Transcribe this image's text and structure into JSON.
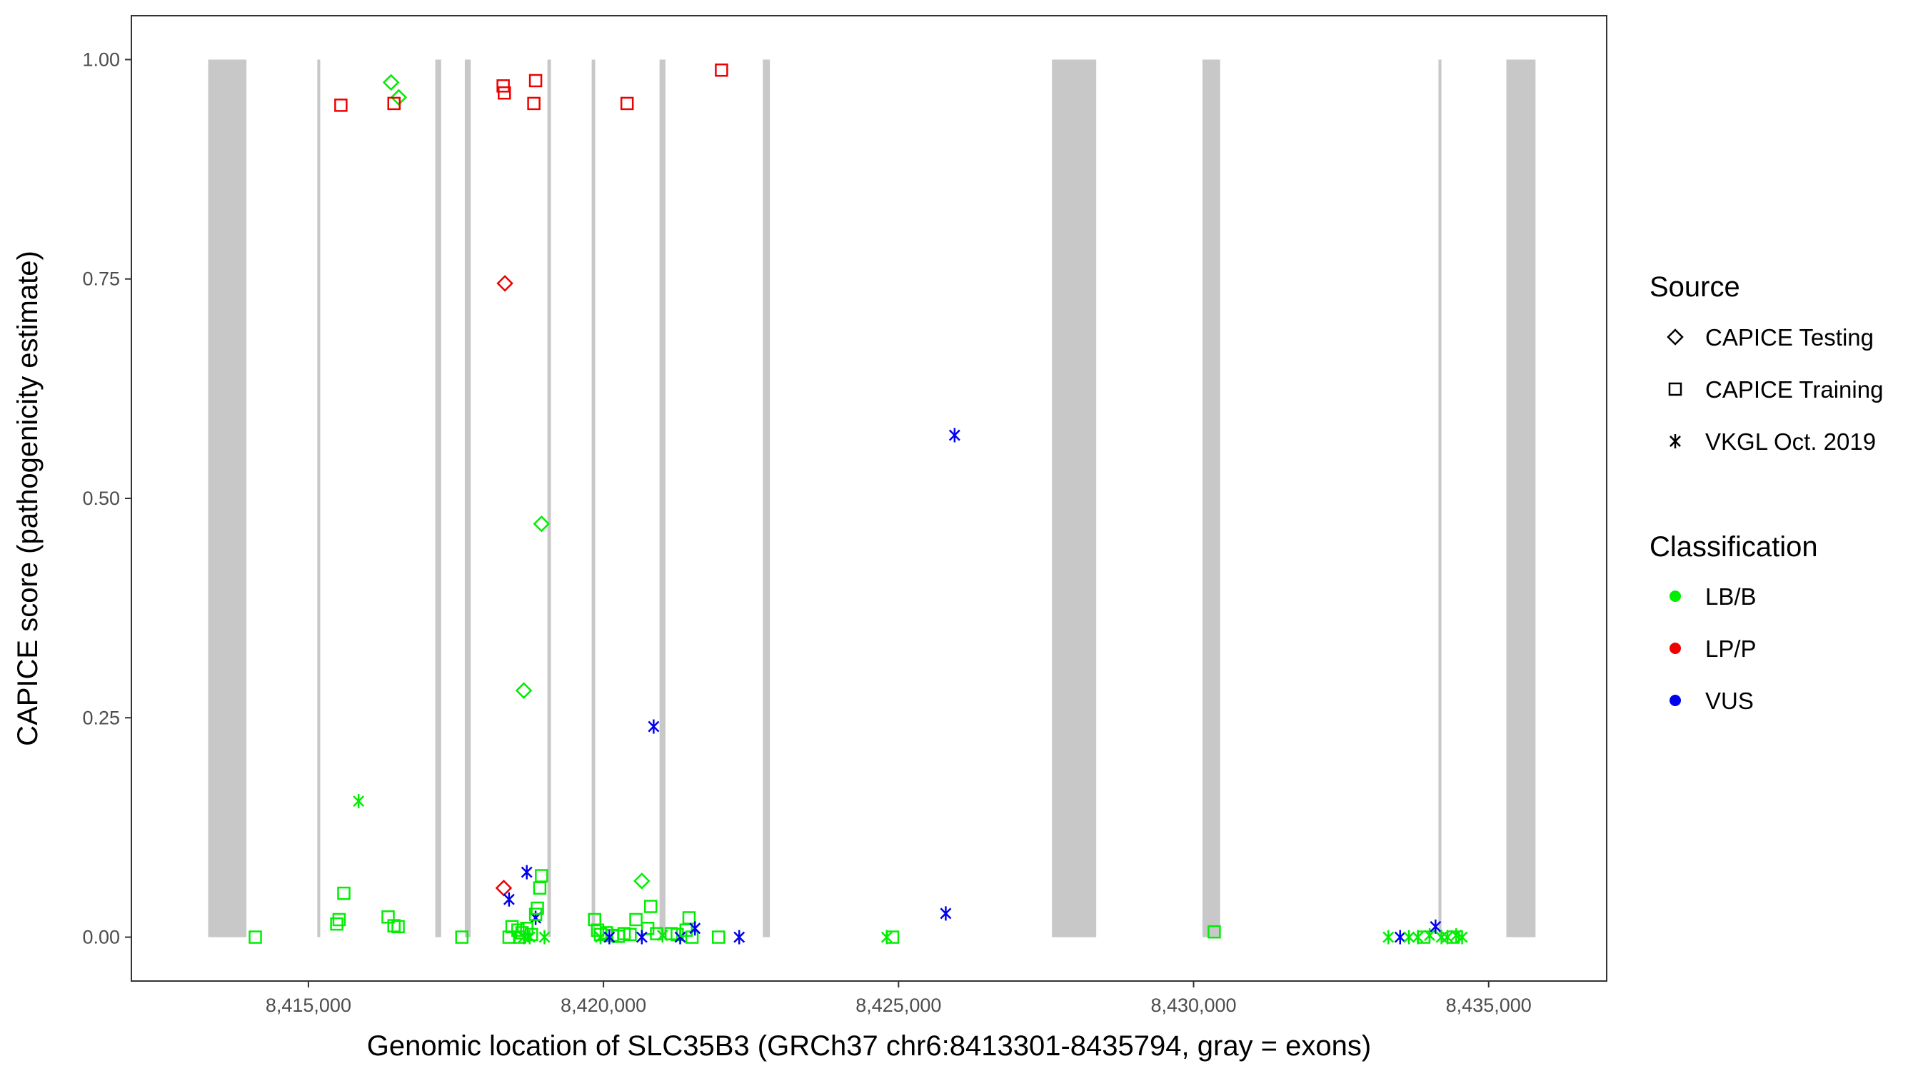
{
  "chart_data": {
    "type": "scatter",
    "xlabel": "Genomic location of SLC35B3 (GRCh37 chr6:8413301-8435794, gray = exons)",
    "ylabel": "CAPICE score (pathogenicity estimate)",
    "xlim": [
      8412000,
      8437000
    ],
    "ylim": [
      -0.05,
      1.05
    ],
    "x_ticks": [
      8415000,
      8420000,
      8425000,
      8430000,
      8435000
    ],
    "x_tick_labels": [
      "8,415,000",
      "8,420,000",
      "8,425,000",
      "8,430,000",
      "8,435,000"
    ],
    "y_ticks": [
      0,
      0.25,
      0.5,
      0.75,
      1.0
    ],
    "y_tick_labels": [
      "0.00",
      "0.25",
      "0.50",
      "0.75",
      "1.00"
    ],
    "grid": false,
    "exon_color": "#c8c8c8",
    "exons": [
      [
        8413301,
        8413950
      ],
      [
        8415150,
        8415200
      ],
      [
        8417150,
        8417250
      ],
      [
        8417650,
        8417750
      ],
      [
        8419050,
        8419110
      ],
      [
        8419800,
        8419860
      ],
      [
        8420950,
        8421050
      ],
      [
        8422700,
        8422820
      ],
      [
        8427600,
        8428350
      ],
      [
        8430150,
        8430450
      ],
      [
        8434150,
        8434200
      ],
      [
        8435300,
        8435794
      ]
    ],
    "legend": {
      "source_title": "Source",
      "source_items": [
        {
          "label": "CAPICE Testing",
          "shape": "diamond"
        },
        {
          "label": "CAPICE Training",
          "shape": "square"
        },
        {
          "label": "VKGL Oct. 2019",
          "shape": "asterisk"
        }
      ],
      "class_title": "Classification",
      "class_items": [
        {
          "label": "LB/B",
          "color": "#00ee00"
        },
        {
          "label": "LP/P",
          "color": "#ee0000"
        },
        {
          "label": "VUS",
          "color": "#0000ee"
        }
      ],
      "placement": "right"
    },
    "points": [
      {
        "x": 8414100,
        "y": 0.0,
        "source": "CAPICE Training",
        "cls": "LB/B"
      },
      {
        "x": 8415550,
        "y": 0.948,
        "source": "CAPICE Training",
        "cls": "LP/P"
      },
      {
        "x": 8415600,
        "y": 0.05,
        "source": "CAPICE Training",
        "cls": "LB/B"
      },
      {
        "x": 8415520,
        "y": 0.02,
        "source": "CAPICE Training",
        "cls": "LB/B"
      },
      {
        "x": 8415480,
        "y": 0.015,
        "source": "CAPICE Training",
        "cls": "LB/B"
      },
      {
        "x": 8415850,
        "y": 0.155,
        "source": "VKGL Oct. 2019",
        "cls": "LB/B"
      },
      {
        "x": 8416400,
        "y": 0.974,
        "source": "CAPICE Testing",
        "cls": "LB/B"
      },
      {
        "x": 8416530,
        "y": 0.957,
        "source": "CAPICE Testing",
        "cls": "LB/B"
      },
      {
        "x": 8416450,
        "y": 0.95,
        "source": "CAPICE Training",
        "cls": "LP/P"
      },
      {
        "x": 8416350,
        "y": 0.023,
        "source": "CAPICE Training",
        "cls": "LB/B"
      },
      {
        "x": 8416450,
        "y": 0.013,
        "source": "CAPICE Training",
        "cls": "LB/B"
      },
      {
        "x": 8416520,
        "y": 0.012,
        "source": "CAPICE Training",
        "cls": "LB/B"
      },
      {
        "x": 8417600,
        "y": 0.0,
        "source": "CAPICE Training",
        "cls": "LB/B"
      },
      {
        "x": 8418300,
        "y": 0.97,
        "source": "CAPICE Training",
        "cls": "LP/P"
      },
      {
        "x": 8418320,
        "y": 0.962,
        "source": "CAPICE Training",
        "cls": "LP/P"
      },
      {
        "x": 8418850,
        "y": 0.976,
        "source": "CAPICE Training",
        "cls": "LP/P"
      },
      {
        "x": 8418820,
        "y": 0.95,
        "source": "CAPICE Training",
        "cls": "LP/P"
      },
      {
        "x": 8418330,
        "y": 0.745,
        "source": "CAPICE Testing",
        "cls": "LP/P"
      },
      {
        "x": 8418950,
        "y": 0.471,
        "source": "CAPICE Testing",
        "cls": "LB/B"
      },
      {
        "x": 8418650,
        "y": 0.281,
        "source": "CAPICE Testing",
        "cls": "LB/B"
      },
      {
        "x": 8418310,
        "y": 0.056,
        "source": "CAPICE Testing",
        "cls": "LP/P"
      },
      {
        "x": 8418700,
        "y": 0.074,
        "source": "VKGL Oct. 2019",
        "cls": "VUS"
      },
      {
        "x": 8418400,
        "y": 0.043,
        "source": "VKGL Oct. 2019",
        "cls": "VUS"
      },
      {
        "x": 8418850,
        "y": 0.022,
        "source": "VKGL Oct. 2019",
        "cls": "VUS"
      },
      {
        "x": 8418950,
        "y": 0.07,
        "source": "CAPICE Training",
        "cls": "LB/B"
      },
      {
        "x": 8418920,
        "y": 0.056,
        "source": "CAPICE Training",
        "cls": "LB/B"
      },
      {
        "x": 8418880,
        "y": 0.033,
        "source": "CAPICE Training",
        "cls": "LB/B"
      },
      {
        "x": 8418850,
        "y": 0.026,
        "source": "CAPICE Training",
        "cls": "LB/B"
      },
      {
        "x": 8418450,
        "y": 0.012,
        "source": "CAPICE Training",
        "cls": "LB/B"
      },
      {
        "x": 8418550,
        "y": 0.008,
        "source": "CAPICE Training",
        "cls": "LB/B"
      },
      {
        "x": 8418620,
        "y": 0.005,
        "source": "CAPICE Training",
        "cls": "LB/B"
      },
      {
        "x": 8418700,
        "y": 0.01,
        "source": "CAPICE Training",
        "cls": "LB/B"
      },
      {
        "x": 8418780,
        "y": 0.003,
        "source": "CAPICE Training",
        "cls": "LB/B"
      },
      {
        "x": 8418400,
        "y": 0.0,
        "source": "CAPICE Training",
        "cls": "LB/B"
      },
      {
        "x": 8418580,
        "y": 0.0,
        "source": "CAPICE Training",
        "cls": "LB/B"
      },
      {
        "x": 8418650,
        "y": 0.0,
        "source": "VKGL Oct. 2019",
        "cls": "LB/B"
      },
      {
        "x": 8418750,
        "y": 0.0,
        "source": "VKGL Oct. 2019",
        "cls": "LB/B"
      },
      {
        "x": 8419000,
        "y": 0.0,
        "source": "VKGL Oct. 2019",
        "cls": "LB/B"
      },
      {
        "x": 8419850,
        "y": 0.02,
        "source": "CAPICE Training",
        "cls": "LB/B"
      },
      {
        "x": 8419900,
        "y": 0.008,
        "source": "CAPICE Training",
        "cls": "LB/B"
      },
      {
        "x": 8419950,
        "y": 0.003,
        "source": "CAPICE Training",
        "cls": "LB/B"
      },
      {
        "x": 8420050,
        "y": 0.005,
        "source": "CAPICE Training",
        "cls": "LB/B"
      },
      {
        "x": 8420150,
        "y": 0.002,
        "source": "CAPICE Training",
        "cls": "LB/B"
      },
      {
        "x": 8420250,
        "y": 0.001,
        "source": "CAPICE Training",
        "cls": "LB/B"
      },
      {
        "x": 8420350,
        "y": 0.004,
        "source": "CAPICE Training",
        "cls": "LB/B"
      },
      {
        "x": 8420450,
        "y": 0.003,
        "source": "CAPICE Training",
        "cls": "LB/B"
      },
      {
        "x": 8419950,
        "y": 0.0,
        "source": "VKGL Oct. 2019",
        "cls": "LB/B"
      },
      {
        "x": 8420100,
        "y": 0.0,
        "source": "VKGL Oct. 2019",
        "cls": "VUS"
      },
      {
        "x": 8420400,
        "y": 0.95,
        "source": "CAPICE Training",
        "cls": "LP/P"
      },
      {
        "x": 8420550,
        "y": 0.02,
        "source": "CAPICE Training",
        "cls": "LB/B"
      },
      {
        "x": 8420650,
        "y": 0.064,
        "source": "CAPICE Testing",
        "cls": "LB/B"
      },
      {
        "x": 8420800,
        "y": 0.035,
        "source": "CAPICE Training",
        "cls": "LB/B"
      },
      {
        "x": 8420750,
        "y": 0.01,
        "source": "CAPICE Training",
        "cls": "LB/B"
      },
      {
        "x": 8420900,
        "y": 0.004,
        "source": "CAPICE Training",
        "cls": "LB/B"
      },
      {
        "x": 8420650,
        "y": 0.0,
        "source": "VKGL Oct. 2019",
        "cls": "VUS"
      },
      {
        "x": 8420850,
        "y": 0.24,
        "source": "VKGL Oct. 2019",
        "cls": "VUS"
      },
      {
        "x": 8421000,
        "y": 0.002,
        "source": "VKGL Oct. 2019",
        "cls": "LB/B"
      },
      {
        "x": 8421150,
        "y": 0.004,
        "source": "CAPICE Training",
        "cls": "LB/B"
      },
      {
        "x": 8421250,
        "y": 0.003,
        "source": "CAPICE Training",
        "cls": "LB/B"
      },
      {
        "x": 8421300,
        "y": 0.0,
        "source": "VKGL Oct. 2019",
        "cls": "VUS"
      },
      {
        "x": 8421450,
        "y": 0.022,
        "source": "CAPICE Training",
        "cls": "LB/B"
      },
      {
        "x": 8421400,
        "y": 0.008,
        "source": "CAPICE Training",
        "cls": "LB/B"
      },
      {
        "x": 8421500,
        "y": 0.0,
        "source": "CAPICE Training",
        "cls": "LB/B"
      },
      {
        "x": 8421550,
        "y": 0.01,
        "source": "VKGL Oct. 2019",
        "cls": "VUS"
      },
      {
        "x": 8421950,
        "y": 0.0,
        "source": "CAPICE Training",
        "cls": "LB/B"
      },
      {
        "x": 8422000,
        "y": 0.988,
        "source": "CAPICE Training",
        "cls": "LP/P"
      },
      {
        "x": 8422300,
        "y": 0.0,
        "source": "VKGL Oct. 2019",
        "cls": "VUS"
      },
      {
        "x": 8424800,
        "y": 0.0,
        "source": "VKGL Oct. 2019",
        "cls": "LB/B"
      },
      {
        "x": 8424900,
        "y": 0.0,
        "source": "CAPICE Training",
        "cls": "LB/B"
      },
      {
        "x": 8425800,
        "y": 0.027,
        "source": "VKGL Oct. 2019",
        "cls": "VUS"
      },
      {
        "x": 8425950,
        "y": 0.572,
        "source": "VKGL Oct. 2019",
        "cls": "VUS"
      },
      {
        "x": 8430350,
        "y": 0.006,
        "source": "CAPICE Training",
        "cls": "LB/B"
      },
      {
        "x": 8433300,
        "y": 0.0,
        "source": "VKGL Oct. 2019",
        "cls": "LB/B"
      },
      {
        "x": 8433500,
        "y": 0.0,
        "source": "VKGL Oct. 2019",
        "cls": "VUS"
      },
      {
        "x": 8433650,
        "y": 0.0,
        "source": "VKGL Oct. 2019",
        "cls": "LB/B"
      },
      {
        "x": 8433800,
        "y": 0.0,
        "source": "VKGL Oct. 2019",
        "cls": "LB/B"
      },
      {
        "x": 8433900,
        "y": 0.0,
        "source": "CAPICE Training",
        "cls": "LB/B"
      },
      {
        "x": 8434000,
        "y": 0.002,
        "source": "VKGL Oct. 2019",
        "cls": "LB/B"
      },
      {
        "x": 8434100,
        "y": 0.012,
        "source": "VKGL Oct. 2019",
        "cls": "VUS"
      },
      {
        "x": 8434200,
        "y": 0.0,
        "source": "VKGL Oct. 2019",
        "cls": "LB/B"
      },
      {
        "x": 8434300,
        "y": 0.0,
        "source": "VKGL Oct. 2019",
        "cls": "LB/B"
      },
      {
        "x": 8434400,
        "y": 0.0,
        "source": "CAPICE Training",
        "cls": "LB/B"
      },
      {
        "x": 8434450,
        "y": 0.002,
        "source": "VKGL Oct. 2019",
        "cls": "LB/B"
      },
      {
        "x": 8434550,
        "y": 0.0,
        "source": "VKGL Oct. 2019",
        "cls": "LB/B"
      }
    ]
  }
}
